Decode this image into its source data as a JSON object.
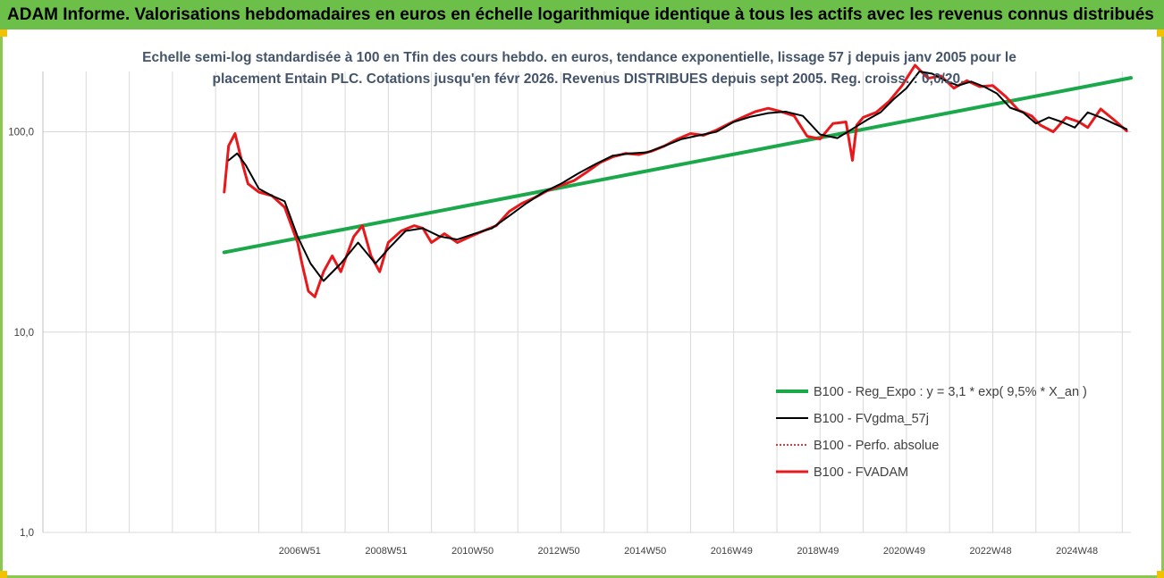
{
  "header": {
    "title": "ADAM Informe. Valorisations hebdomadaires en euros en échelle logarithmique identique à tous les actifs avec les revenus connus distribués"
  },
  "colors": {
    "banner": "#6cc04a",
    "frame": "#8cc850",
    "corner": "#f2c200",
    "regression": "#1aa84a",
    "fvgdma": "#000000",
    "perfo": "#c00000",
    "fvadam": "#e8191c",
    "grid": "#d9d9d9"
  },
  "chart_data": {
    "type": "line",
    "subtitle_lines": [
      "Echelle semi-log standardisée à 100 en Tfin des cours hebdo. en euros, tendance exponentielle, lissage 57 j depuis janv 2005 pour le",
      "placement Entain PLC. Cotations jusqu'en févr 2026. Revenus DISTRIBUES depuis sept 2005. Reg. croiss. : 0,0/20."
    ],
    "y_scale": "log",
    "ylim": [
      1,
      200
    ],
    "xlim": [
      2001.0,
      2026.2
    ],
    "y_ticks": [
      {
        "value": 1,
        "label": "1,0"
      },
      {
        "value": 10,
        "label": "10,0"
      },
      {
        "value": 100,
        "label": "100,0"
      }
    ],
    "x_ticks": [
      {
        "x": 2006.95,
        "label": "2006W51"
      },
      {
        "x": 2008.95,
        "label": "2008W51"
      },
      {
        "x": 2010.95,
        "label": "2010W50"
      },
      {
        "x": 2012.95,
        "label": "2012W50"
      },
      {
        "x": 2014.95,
        "label": "2014W50"
      },
      {
        "x": 2016.95,
        "label": "2016W49"
      },
      {
        "x": 2018.95,
        "label": "2018W49"
      },
      {
        "x": 2020.95,
        "label": "2020W49"
      },
      {
        "x": 2022.95,
        "label": "2022W48"
      },
      {
        "x": 2024.95,
        "label": "2024W48"
      }
    ],
    "grid": true,
    "legend_position": "bottom-right",
    "series": [
      {
        "name": "B100 - Reg_Expo : y = 3,1 * exp( 9,5% *  X_an )",
        "key": "reg",
        "style": "solid-thick",
        "x": [
          2005.2,
          2026.2
        ],
        "y": [
          25,
          186
        ]
      },
      {
        "name": "B100 - FVgdma_57j",
        "key": "fvgdma",
        "style": "solid-thin",
        "x": [
          2005.3,
          2005.5,
          2005.7,
          2006.0,
          2006.3,
          2006.6,
          2006.9,
          2007.2,
          2007.5,
          2007.9,
          2008.3,
          2008.7,
          2009.0,
          2009.4,
          2009.8,
          2010.2,
          2010.6,
          2011.0,
          2011.4,
          2011.8,
          2012.2,
          2012.6,
          2013.0,
          2013.4,
          2013.8,
          2014.2,
          2014.6,
          2015.0,
          2015.4,
          2015.8,
          2016.2,
          2016.6,
          2017.0,
          2017.4,
          2017.8,
          2018.2,
          2018.6,
          2019.0,
          2019.4,
          2019.8,
          2020.1,
          2020.4,
          2020.7,
          2021.0,
          2021.3,
          2021.6,
          2021.9,
          2022.2,
          2022.5,
          2022.8,
          2023.1,
          2023.4,
          2023.7,
          2024.0,
          2024.3,
          2024.6,
          2024.9,
          2025.2,
          2025.5,
          2025.8,
          2026.1
        ],
        "y": [
          72,
          78,
          68,
          52,
          48,
          45,
          30,
          22,
          18,
          22,
          28,
          22,
          26,
          32,
          33,
          30,
          29,
          31,
          33,
          38,
          44,
          50,
          55,
          62,
          69,
          76,
          78,
          79,
          85,
          92,
          96,
          100,
          112,
          119,
          124,
          126,
          120,
          97,
          93,
          105,
          115,
          125,
          145,
          165,
          200,
          195,
          180,
          170,
          178,
          168,
          155,
          132,
          125,
          110,
          118,
          112,
          105,
          125,
          118,
          110,
          103
        ]
      },
      {
        "name": "B100 - Perfo. absolue",
        "key": "perfo",
        "style": "dotted",
        "x": [],
        "y": []
      },
      {
        "name": "B100 - FVADAM",
        "key": "fvadam",
        "style": "solid-medium",
        "x": [
          2005.2,
          2005.3,
          2005.45,
          2005.6,
          2005.75,
          2006.0,
          2006.3,
          2006.6,
          2006.9,
          2007.0,
          2007.15,
          2007.3,
          2007.5,
          2007.7,
          2007.9,
          2008.0,
          2008.2,
          2008.4,
          2008.6,
          2008.8,
          2009.0,
          2009.3,
          2009.6,
          2009.8,
          2010.0,
          2010.3,
          2010.6,
          2010.9,
          2011.2,
          2011.5,
          2011.8,
          2012.1,
          2012.4,
          2012.7,
          2013.0,
          2013.3,
          2013.6,
          2013.9,
          2014.2,
          2014.5,
          2014.8,
          2015.1,
          2015.4,
          2015.7,
          2016.0,
          2016.3,
          2016.6,
          2016.9,
          2017.2,
          2017.5,
          2017.8,
          2018.1,
          2018.4,
          2018.7,
          2019.0,
          2019.3,
          2019.6,
          2019.75,
          2019.85,
          2020.0,
          2020.3,
          2020.6,
          2020.9,
          2021.2,
          2021.5,
          2021.8,
          2022.1,
          2022.4,
          2022.7,
          2023.0,
          2023.3,
          2023.6,
          2023.9,
          2024.1,
          2024.4,
          2024.7,
          2025.0,
          2025.2,
          2025.5,
          2025.8,
          2026.1
        ],
        "y": [
          50,
          85,
          98,
          72,
          55,
          50,
          48,
          42,
          28,
          22,
          16,
          15,
          20,
          24,
          20,
          23,
          30,
          34,
          24,
          20,
          28,
          32,
          34,
          33,
          28,
          31,
          28,
          30,
          32,
          34,
          40,
          44,
          47,
          51,
          54,
          57,
          63,
          70,
          75,
          78,
          77,
          80,
          85,
          92,
          98,
          96,
          102,
          110,
          118,
          126,
          131,
          126,
          120,
          95,
          92,
          110,
          112,
          72,
          108,
          118,
          125,
          142,
          170,
          215,
          185,
          190,
          165,
          180,
          168,
          170,
          150,
          128,
          120,
          108,
          100,
          118,
          112,
          105,
          130,
          115,
          101
        ]
      }
    ]
  }
}
